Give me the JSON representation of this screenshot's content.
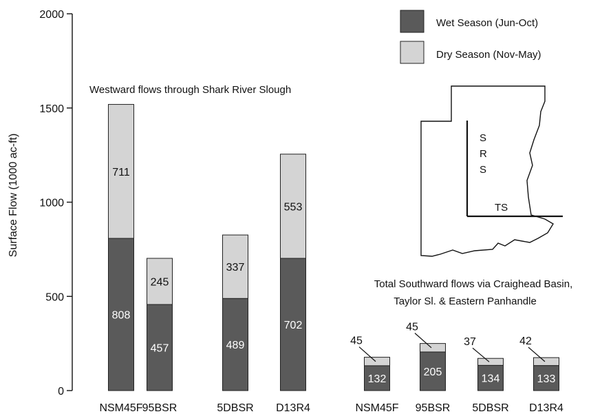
{
  "chart_data": {
    "type": "bar",
    "stacked": true,
    "ylabel": "Surface Flow (1000 ac-ft)",
    "ylim": [
      0,
      2000
    ],
    "yticks": [
      0,
      500,
      1000,
      1500,
      2000
    ],
    "grid": false,
    "legend_position": "top-right",
    "series": [
      {
        "name": "Wet Season (Jun-Oct)",
        "color": "#5a5a5a"
      },
      {
        "name": "Dry Season (Nov-May)",
        "color": "#d4d4d4"
      }
    ],
    "groups": [
      {
        "label": "Westward flows through Shark River Slough",
        "categories": [
          "NSM45F",
          "95BSR",
          "5DBSR",
          "D13R4"
        ],
        "wet": [
          808,
          457,
          489,
          702
        ],
        "dry": [
          711,
          245,
          337,
          553
        ]
      },
      {
        "label_lines": [
          "Total Southward flows via Craighead Basin,",
          "Taylor Sl. & Eastern Panhandle"
        ],
        "categories": [
          "NSM45F",
          "95BSR",
          "5DBSR",
          "D13R4"
        ],
        "wet": [
          132,
          205,
          134,
          133
        ],
        "dry": [
          45,
          45,
          37,
          42
        ]
      }
    ],
    "inset_map": {
      "vertical_label_letters": [
        "S",
        "R",
        "S"
      ],
      "horizontal_label": "TS"
    }
  }
}
